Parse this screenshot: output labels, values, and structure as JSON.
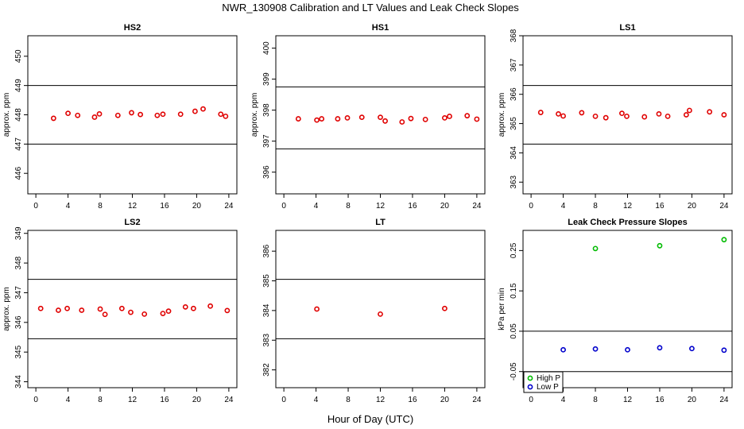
{
  "figure": {
    "title": "NWR_130908  Calibration and LT Values and Leak Check Slopes",
    "xlabel": "Hour of Day (UTC)"
  },
  "chart_data": [
    {
      "id": "hs2",
      "type": "scatter",
      "title": "HS2",
      "ylabel": "approx. ppm",
      "xlim": [
        -1,
        25
      ],
      "xticks": [
        0,
        4,
        8,
        12,
        16,
        20,
        24
      ],
      "ylim": [
        445.3,
        450.7
      ],
      "yticks": [
        446,
        447,
        448,
        449,
        450
      ],
      "hlines": [
        447.0,
        449.0
      ],
      "series": [
        {
          "name": "HS2",
          "color": "#e00000",
          "x": [
            2.2,
            4.0,
            5.2,
            7.3,
            7.9,
            10.2,
            11.9,
            13.0,
            15.1,
            15.8,
            18.0,
            19.8,
            20.8,
            23.0,
            23.6
          ],
          "y": [
            447.88,
            448.05,
            447.98,
            447.92,
            448.03,
            447.98,
            448.07,
            448.01,
            447.98,
            448.02,
            448.02,
            448.12,
            448.2,
            448.02,
            447.95
          ]
        }
      ]
    },
    {
      "id": "hs1",
      "type": "scatter",
      "title": "HS1",
      "ylabel": "approx. ppm",
      "xlim": [
        -1,
        25
      ],
      "xticks": [
        0,
        4,
        8,
        12,
        16,
        20,
        24
      ],
      "ylim": [
        395.3,
        400.4
      ],
      "yticks": [
        396,
        397,
        398,
        399,
        400
      ],
      "hlines": [
        396.75,
        398.75
      ],
      "series": [
        {
          "name": "HS1",
          "color": "#e00000",
          "x": [
            1.8,
            4.1,
            4.7,
            6.7,
            7.9,
            9.7,
            12.0,
            12.6,
            14.7,
            15.8,
            17.6,
            20.0,
            20.6,
            22.8,
            24.0
          ],
          "y": [
            397.72,
            397.68,
            397.72,
            397.72,
            397.75,
            397.77,
            397.77,
            397.65,
            397.62,
            397.73,
            397.7,
            397.75,
            397.8,
            397.82,
            397.71
          ]
        }
      ]
    },
    {
      "id": "ls1",
      "type": "scatter",
      "title": "LS1",
      "ylabel": "approx. ppm",
      "xlim": [
        -1,
        25
      ],
      "xticks": [
        0,
        4,
        8,
        12,
        16,
        20,
        24
      ],
      "ylim": [
        362.6,
        368.0
      ],
      "yticks": [
        363,
        364,
        365,
        366,
        367,
        368
      ],
      "hlines": [
        364.3,
        366.3
      ],
      "series": [
        {
          "name": "LS1",
          "color": "#e00000",
          "x": [
            1.2,
            3.4,
            4.0,
            6.3,
            8.0,
            9.3,
            11.3,
            11.9,
            14.1,
            15.9,
            17.0,
            19.3,
            19.7,
            22.2,
            24.0
          ],
          "y": [
            365.38,
            365.33,
            365.26,
            365.37,
            365.25,
            365.2,
            365.35,
            365.25,
            365.23,
            365.33,
            365.25,
            365.3,
            365.45,
            365.4,
            365.3
          ]
        }
      ]
    },
    {
      "id": "ls2",
      "type": "scatter",
      "title": "LS2",
      "ylabel": "approx. ppm",
      "xlim": [
        -1,
        25
      ],
      "xticks": [
        0,
        4,
        8,
        12,
        16,
        20,
        24
      ],
      "ylim": [
        343.8,
        349.1
      ],
      "yticks": [
        344,
        345,
        346,
        347,
        348,
        349
      ],
      "hlines": [
        345.45,
        347.45
      ],
      "series": [
        {
          "name": "LS2",
          "color": "#e00000",
          "x": [
            0.6,
            2.8,
            3.9,
            5.7,
            8.0,
            8.6,
            10.7,
            11.8,
            13.5,
            15.8,
            16.5,
            18.6,
            19.6,
            21.7,
            23.8
          ],
          "y": [
            346.47,
            346.41,
            346.47,
            346.41,
            346.45,
            346.27,
            346.47,
            346.34,
            346.28,
            346.3,
            346.38,
            346.52,
            346.47,
            346.55,
            346.4
          ]
        }
      ]
    },
    {
      "id": "lt",
      "type": "scatter",
      "title": "LT",
      "ylabel": "",
      "xlim": [
        -1,
        25
      ],
      "xticks": [
        0,
        4,
        8,
        12,
        16,
        20,
        24
      ],
      "ylim": [
        381.4,
        386.7
      ],
      "yticks": [
        382,
        383,
        384,
        385,
        386
      ],
      "hlines": [
        383.05,
        385.05
      ],
      "series": [
        {
          "name": "LT",
          "color": "#e00000",
          "x": [
            4.1,
            12.0,
            20.0
          ],
          "y": [
            384.05,
            383.88,
            384.07
          ]
        }
      ]
    },
    {
      "id": "leak",
      "type": "scatter",
      "title": "Leak Check Pressure Slopes",
      "ylabel": "kPa per min",
      "xlim": [
        -1,
        25
      ],
      "xticks": [
        0,
        4,
        8,
        12,
        16,
        20,
        24
      ],
      "ylim": [
        -0.09,
        0.3
      ],
      "yticks": [
        -0.05,
        0.05,
        0.15,
        0.25
      ],
      "ytick_labels": [
        "-0.05",
        "0.05",
        "0.15",
        "0.25"
      ],
      "hlines": [
        0.05,
        -0.05
      ],
      "legend": {
        "position": "bottom-left",
        "entries": [
          "High P",
          "Low P"
        ]
      },
      "series": [
        {
          "name": "High P",
          "color": "#00bb00",
          "x": [
            8,
            16,
            24
          ],
          "y": [
            0.255,
            0.262,
            0.277
          ]
        },
        {
          "name": "Low P",
          "color": "#0000cc",
          "x": [
            4,
            8,
            12,
            16,
            20,
            24
          ],
          "y": [
            0.004,
            0.006,
            0.004,
            0.009,
            0.007,
            0.003
          ]
        }
      ]
    }
  ]
}
